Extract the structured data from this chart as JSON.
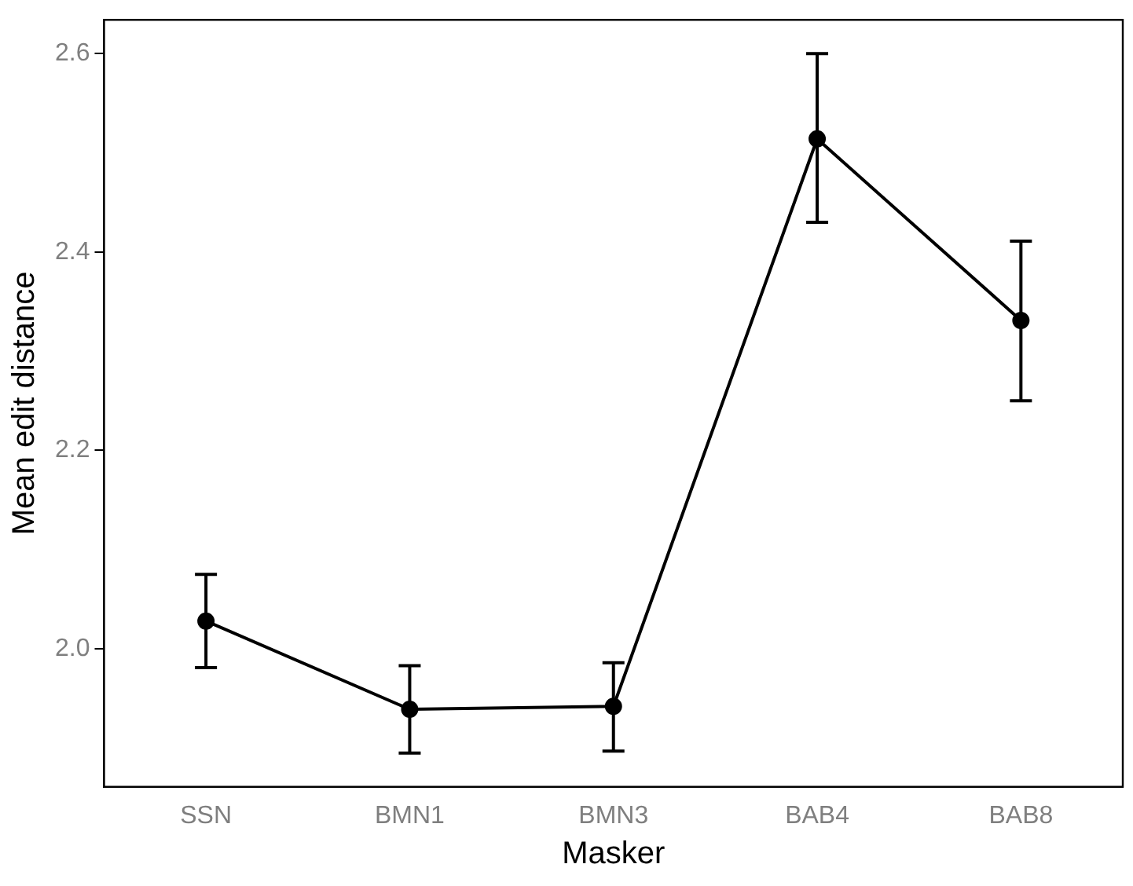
{
  "chart_data": {
    "type": "line",
    "xlabel": "Masker",
    "ylabel": "Mean edit distance",
    "categories": [
      "SSN",
      "BMN1",
      "BMN3",
      "BAB4",
      "BAB8"
    ],
    "series": [
      {
        "color": "#000000",
        "values": [
          2.028,
          1.939,
          1.942,
          2.514,
          2.331
        ],
        "errors": [
          [
            1.981,
            2.075
          ],
          [
            1.895,
            1.983
          ],
          [
            1.897,
            1.986
          ],
          [
            2.43,
            2.6
          ],
          [
            2.25,
            2.411
          ]
        ]
      }
    ],
    "ylim": [
      1.861,
      2.634
    ],
    "yticks": [
      {
        "value": 2.0,
        "label": "2.0"
      },
      {
        "value": 2.2,
        "label": "2.2"
      },
      {
        "value": 2.4,
        "label": "2.4"
      },
      {
        "value": 2.6,
        "label": "2.6"
      }
    ],
    "grid": false,
    "legend": false,
    "marker": "circle",
    "line_style": "solid"
  }
}
